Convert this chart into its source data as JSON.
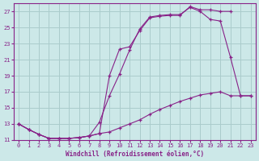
{
  "xlabel": "Windchill (Refroidissement éolien,°C)",
  "bg_color": "#cce8e8",
  "line_color": "#882288",
  "grid_color": "#aacccc",
  "xlim": [
    -0.5,
    23.5
  ],
  "ylim": [
    11,
    28
  ],
  "yticks": [
    11,
    13,
    15,
    17,
    19,
    21,
    23,
    25,
    27
  ],
  "xticks": [
    0,
    1,
    2,
    3,
    4,
    5,
    6,
    7,
    8,
    9,
    10,
    11,
    12,
    13,
    14,
    15,
    16,
    17,
    18,
    19,
    20,
    21,
    22,
    23
  ],
  "curve1_x": [
    0,
    1,
    2,
    3,
    4,
    5,
    6,
    7,
    8,
    9,
    10,
    11,
    12,
    13,
    14,
    15,
    16,
    17,
    18,
    19,
    20,
    21
  ],
  "curve1_y": [
    13.0,
    12.3,
    11.7,
    11.2,
    11.2,
    11.2,
    11.3,
    11.5,
    11.8,
    19.0,
    22.3,
    22.6,
    24.6,
    26.2,
    26.4,
    26.5,
    26.5,
    27.6,
    27.2,
    27.2,
    27.0,
    27.0
  ],
  "curve2_x": [
    0,
    1,
    2,
    3,
    4,
    5,
    6,
    7,
    8,
    9,
    10,
    11,
    12,
    13,
    14,
    15,
    16,
    17,
    18,
    19,
    20,
    21,
    22,
    23
  ],
  "curve2_y": [
    13.0,
    12.3,
    11.7,
    11.2,
    11.2,
    11.2,
    11.3,
    11.5,
    13.2,
    16.5,
    19.2,
    22.2,
    24.8,
    26.3,
    26.5,
    26.6,
    26.6,
    27.5,
    27.0,
    26.0,
    25.8,
    21.3,
    16.5,
    16.5
  ],
  "curve3_x": [
    0,
    1,
    2,
    3,
    4,
    5,
    6,
    7,
    8,
    9,
    10,
    11,
    12,
    13,
    14,
    15,
    16,
    17,
    18,
    19,
    20,
    21,
    22,
    23
  ],
  "curve3_y": [
    13.0,
    12.3,
    11.7,
    11.2,
    11.2,
    11.2,
    11.3,
    11.5,
    11.8,
    12.0,
    12.5,
    13.0,
    13.5,
    14.2,
    14.8,
    15.3,
    15.8,
    16.2,
    16.6,
    16.8,
    17.0,
    16.5,
    16.5,
    16.5
  ]
}
